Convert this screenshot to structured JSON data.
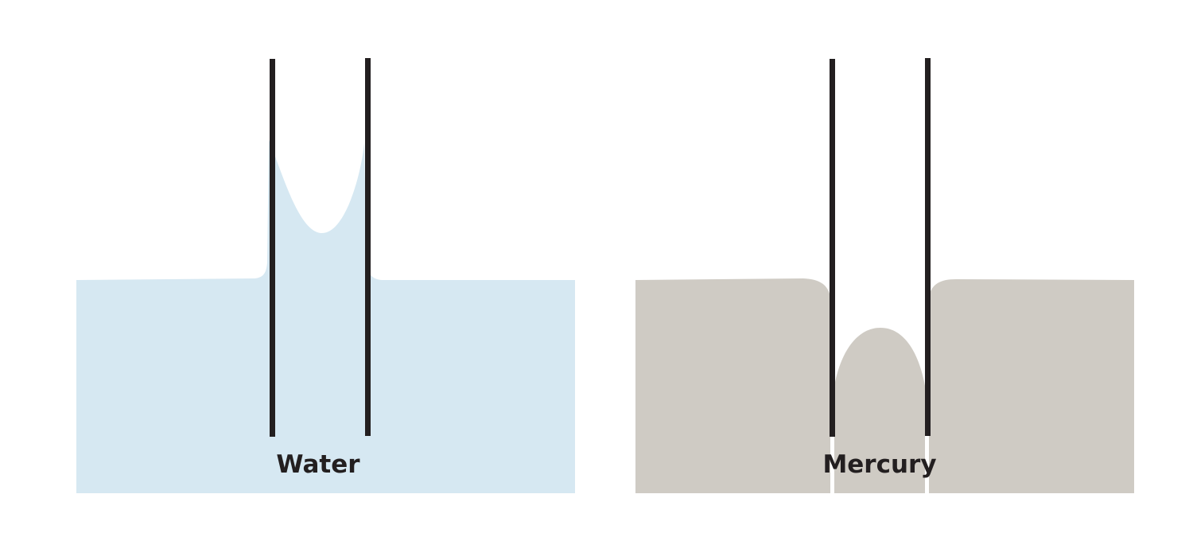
{
  "panels": [
    {
      "label": "Water",
      "liquid_color": "#d6e8f2"
    },
    {
      "label": "Mercury",
      "liquid_color": "#cfcbc4"
    }
  ],
  "tube_color": "#231f20",
  "background_color": "#ffffff"
}
